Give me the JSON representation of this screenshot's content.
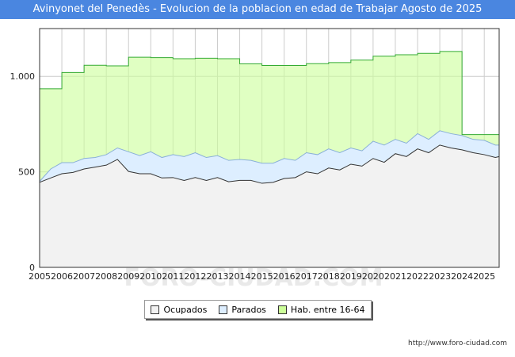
{
  "title": "Avinyonet del Penedès - Evolucion de la poblacion en edad de Trabajar Agosto de 2025",
  "source": "http://www.foro-ciudad.com",
  "watermark": "FORO-CIUDAD.COM",
  "legend": [
    {
      "label": "Ocupados",
      "color": "#f2f2f2"
    },
    {
      "label": "Parados",
      "color": "#ddeeff"
    },
    {
      "label": "Hab. entre 16-64",
      "color": "#ccff99"
    }
  ],
  "chart_data": {
    "type": "area",
    "title": "Avinyonet del Penedès - Evolucion de la poblacion en edad de Trabajar Agosto de 2025",
    "xlabel": "",
    "ylabel": "",
    "x_ticks": [
      "2005",
      "2006",
      "2007",
      "2008",
      "2009",
      "2010",
      "2011",
      "2012",
      "2013",
      "2014",
      "2015",
      "2016",
      "2017",
      "2018",
      "2019",
      "2020",
      "2021",
      "2022",
      "2023",
      "2024",
      "2025"
    ],
    "xlim": [
      2005,
      2025.67
    ],
    "y_ticks": [
      0,
      500,
      1000
    ],
    "y_tick_labels": [
      "0",
      "500",
      "1.000"
    ],
    "ylim": [
      0,
      1250
    ],
    "grid": true,
    "legend_position": "bottom",
    "series": [
      {
        "name": "Hab. entre 16-64",
        "color": "#ccff99",
        "line": "#33aa33",
        "step": true,
        "x": [
          2005,
          2006,
          2007,
          2008,
          2009,
          2010,
          2011,
          2012,
          2013,
          2014,
          2015,
          2016,
          2017,
          2018,
          2019,
          2020,
          2021,
          2022,
          2023,
          2024
        ],
        "values": [
          935,
          1020,
          1058,
          1055,
          1100,
          1098,
          1092,
          1095,
          1092,
          1065,
          1057,
          1057,
          1066,
          1072,
          1085,
          1105,
          1113,
          1120,
          1130,
          695
        ]
      },
      {
        "name": "Parados",
        "color": "#ddeeff",
        "line": "#8ab0d8",
        "x": [
          2005,
          2005.5,
          2006,
          2006.5,
          2007,
          2007.5,
          2008,
          2008.5,
          2009,
          2009.5,
          2010,
          2010.5,
          2011,
          2011.5,
          2012,
          2012.5,
          2013,
          2013.5,
          2014,
          2014.5,
          2015,
          2015.5,
          2016,
          2016.5,
          2017,
          2017.5,
          2018,
          2018.5,
          2019,
          2019.5,
          2020,
          2020.5,
          2021,
          2021.5,
          2022,
          2022.5,
          2023,
          2023.5,
          2024,
          2024.5,
          2025,
          2025.5,
          2025.67
        ],
        "values": [
          450,
          515,
          548,
          548,
          570,
          575,
          590,
          625,
          605,
          585,
          605,
          575,
          590,
          580,
          600,
          575,
          585,
          560,
          565,
          560,
          545,
          545,
          570,
          560,
          600,
          590,
          620,
          600,
          625,
          610,
          660,
          640,
          670,
          650,
          700,
          670,
          715,
          700,
          690,
          670,
          665,
          640,
          640
        ]
      },
      {
        "name": "Ocupados",
        "color": "#f2f2f2",
        "line": "#333333",
        "x": [
          2005,
          2005.5,
          2006,
          2006.5,
          2007,
          2007.5,
          2008,
          2008.5,
          2009,
          2009.5,
          2010,
          2010.5,
          2011,
          2011.5,
          2012,
          2012.5,
          2013,
          2013.5,
          2014,
          2014.5,
          2015,
          2015.5,
          2016,
          2016.5,
          2017,
          2017.5,
          2018,
          2018.5,
          2019,
          2019.5,
          2020,
          2020.5,
          2021,
          2021.5,
          2022,
          2022.5,
          2023,
          2023.5,
          2024,
          2024.5,
          2025,
          2025.5,
          2025.67
        ],
        "values": [
          445,
          468,
          490,
          497,
          515,
          525,
          535,
          565,
          502,
          490,
          490,
          468,
          470,
          455,
          470,
          455,
          470,
          448,
          455,
          455,
          440,
          445,
          465,
          470,
          500,
          490,
          520,
          510,
          540,
          530,
          570,
          550,
          595,
          580,
          620,
          600,
          640,
          625,
          615,
          600,
          590,
          575,
          580
        ]
      }
    ]
  }
}
